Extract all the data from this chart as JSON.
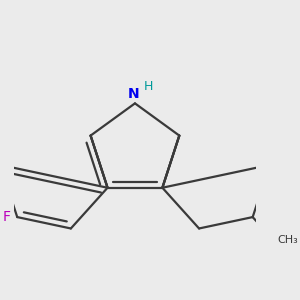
{
  "background_color": "#ebebeb",
  "bond_color": "#3a3a3a",
  "bond_width": 1.6,
  "N_color": "#0000ee",
  "F_color": "#bb00bb",
  "H_color": "#009999",
  "figsize": [
    3.0,
    3.0
  ],
  "dpi": 100,
  "xlim": [
    -2.2,
    2.2
  ],
  "ylim": [
    -1.9,
    1.9
  ]
}
